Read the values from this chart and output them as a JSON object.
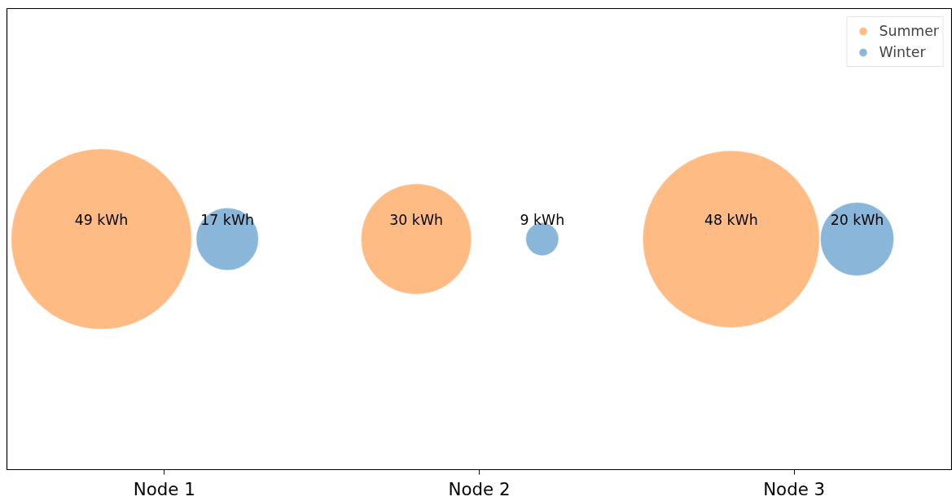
{
  "chart_data": {
    "type": "other",
    "categories": [
      "Node 1",
      "Node 2",
      "Node 3"
    ],
    "legend": "top right",
    "series": [
      {
        "name": "Summer",
        "color": "#ffbb84",
        "values": [
          49,
          30,
          48
        ],
        "value_labels": [
          "49 kWh",
          "30 kWh",
          "48 kWh"
        ]
      },
      {
        "name": "Winter",
        "color": "#8ab7d9",
        "values": [
          17,
          9,
          20
        ],
        "value_labels": [
          "17 kWh",
          "9 kWh",
          "20 kWh"
        ]
      }
    ]
  }
}
